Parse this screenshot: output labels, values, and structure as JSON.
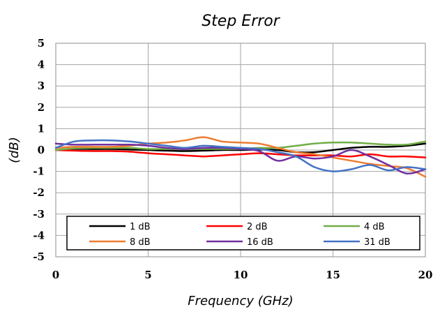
{
  "chart_data": {
    "type": "line",
    "title": "Step Error",
    "xlabel": "Frequency (GHz)",
    "ylabel": "(dB)",
    "xlim": [
      0,
      20
    ],
    "ylim": [
      -5,
      5
    ],
    "xticks": [
      0,
      5,
      10,
      15,
      20
    ],
    "yticks": [
      5,
      4,
      3,
      2,
      1,
      0,
      -1,
      -2,
      -3,
      -4,
      -5
    ],
    "grid": true,
    "legend_position": "bottom-inside",
    "series": [
      {
        "name": "1 dB",
        "color": "#000000",
        "x": [
          0,
          1,
          2,
          3,
          4,
          5,
          6,
          7,
          8,
          9,
          10,
          11,
          12,
          13,
          14,
          15,
          16,
          17,
          18,
          19,
          20
        ],
        "y": [
          0.0,
          0.05,
          0.05,
          0.05,
          0.02,
          0.0,
          -0.03,
          -0.05,
          -0.03,
          0.0,
          0.0,
          0.02,
          0.0,
          -0.1,
          -0.1,
          0.0,
          0.1,
          0.15,
          0.15,
          0.2,
          0.3
        ]
      },
      {
        "name": "2 dB",
        "color": "#ff0000",
        "x": [
          0,
          1,
          2,
          3,
          4,
          5,
          6,
          7,
          8,
          9,
          10,
          11,
          12,
          13,
          14,
          15,
          16,
          17,
          18,
          19,
          20
        ],
        "y": [
          0.0,
          -0.03,
          -0.05,
          -0.05,
          -0.08,
          -0.15,
          -0.2,
          -0.25,
          -0.3,
          -0.25,
          -0.2,
          -0.15,
          -0.2,
          -0.25,
          -0.25,
          -0.25,
          -0.3,
          -0.2,
          -0.3,
          -0.3,
          -0.35
        ]
      },
      {
        "name": "4 dB",
        "color": "#70ad47",
        "x": [
          0,
          1,
          2,
          3,
          4,
          5,
          6,
          7,
          8,
          9,
          10,
          11,
          12,
          13,
          14,
          15,
          16,
          17,
          18,
          19,
          20
        ],
        "y": [
          0.0,
          0.08,
          0.1,
          0.1,
          0.1,
          0.05,
          0.05,
          0.05,
          0.05,
          0.05,
          0.05,
          0.1,
          0.1,
          0.2,
          0.3,
          0.35,
          0.35,
          0.3,
          0.25,
          0.25,
          0.4
        ]
      },
      {
        "name": "8 dB",
        "color": "#ed7d31",
        "x": [
          0,
          1,
          2,
          3,
          4,
          5,
          6,
          7,
          8,
          9,
          10,
          11,
          12,
          13,
          14,
          15,
          16,
          17,
          18,
          19,
          20
        ],
        "y": [
          0.1,
          0.15,
          0.15,
          0.15,
          0.2,
          0.3,
          0.35,
          0.45,
          0.6,
          0.4,
          0.35,
          0.3,
          0.1,
          -0.1,
          -0.2,
          -0.35,
          -0.5,
          -0.65,
          -0.75,
          -0.85,
          -1.25
        ]
      },
      {
        "name": "16 dB",
        "color": "#7030a0",
        "x": [
          0,
          1,
          2,
          3,
          4,
          5,
          6,
          7,
          8,
          9,
          10,
          11,
          12,
          13,
          14,
          15,
          16,
          17,
          18,
          19,
          20
        ],
        "y": [
          0.3,
          0.25,
          0.25,
          0.25,
          0.25,
          0.2,
          0.1,
          0.05,
          0.1,
          0.1,
          0.05,
          -0.05,
          -0.5,
          -0.3,
          -0.4,
          -0.3,
          0.0,
          -0.3,
          -0.7,
          -1.1,
          -0.9
        ]
      },
      {
        "name": "31 dB",
        "color": "#4472c4",
        "x": [
          0,
          1,
          2,
          3,
          4,
          5,
          6,
          7,
          8,
          9,
          10,
          11,
          12,
          13,
          14,
          15,
          16,
          17,
          18,
          19,
          20
        ],
        "y": [
          0.1,
          0.4,
          0.45,
          0.45,
          0.4,
          0.3,
          0.2,
          0.1,
          0.2,
          0.15,
          0.1,
          0.05,
          -0.1,
          -0.3,
          -0.8,
          -1.0,
          -0.9,
          -0.7,
          -0.95,
          -0.8,
          -0.9
        ]
      }
    ]
  }
}
